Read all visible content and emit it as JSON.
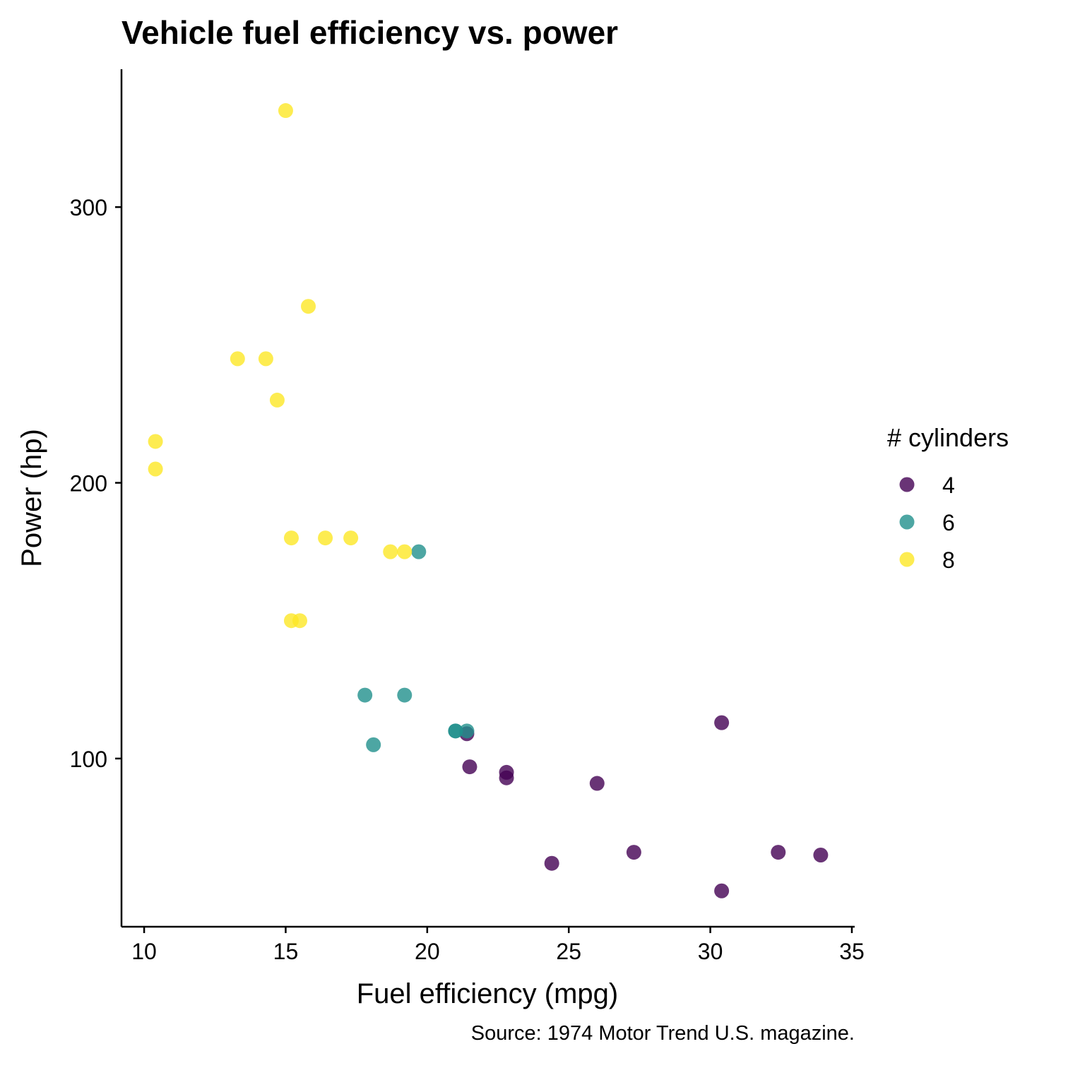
{
  "chart_data": {
    "type": "scatter",
    "title": "Vehicle fuel efficiency vs. power",
    "xlabel": "Fuel efficiency (mpg)",
    "ylabel": "Power (hp)",
    "caption": "Source: 1974 Motor Trend U.S. magazine.",
    "xlim": [
      9.2,
      35.1
    ],
    "ylim": [
      39,
      350
    ],
    "xticks": [
      10,
      15,
      20,
      25,
      30,
      35
    ],
    "yticks": [
      100,
      200,
      300
    ],
    "grid": false,
    "legend": {
      "title": "# cylinders",
      "position": "right",
      "entries": [
        {
          "label": "4",
          "color": "#440154"
        },
        {
          "label": "6",
          "color": "#21908C"
        },
        {
          "label": "8",
          "color": "#FDE725"
        }
      ]
    },
    "point_opacity": 0.8,
    "series": [
      {
        "name": "4",
        "color": "#440154",
        "points": [
          [
            22.8,
            93
          ],
          [
            24.4,
            62
          ],
          [
            22.8,
            95
          ],
          [
            32.4,
            66
          ],
          [
            30.4,
            52
          ],
          [
            33.9,
            65
          ],
          [
            21.5,
            97
          ],
          [
            27.3,
            66
          ],
          [
            26.0,
            91
          ],
          [
            30.4,
            113
          ],
          [
            21.4,
            109
          ]
        ]
      },
      {
        "name": "6",
        "color": "#21908C",
        "points": [
          [
            21.0,
            110
          ],
          [
            21.0,
            110
          ],
          [
            21.4,
            110
          ],
          [
            18.1,
            105
          ],
          [
            19.2,
            123
          ],
          [
            17.8,
            123
          ],
          [
            19.7,
            175
          ]
        ]
      },
      {
        "name": "8",
        "color": "#FDE725",
        "points": [
          [
            18.7,
            175
          ],
          [
            14.3,
            245
          ],
          [
            16.4,
            180
          ],
          [
            17.3,
            180
          ],
          [
            15.2,
            180
          ],
          [
            10.4,
            205
          ],
          [
            10.4,
            215
          ],
          [
            14.7,
            230
          ],
          [
            15.5,
            150
          ],
          [
            15.2,
            150
          ],
          [
            13.3,
            245
          ],
          [
            19.2,
            175
          ],
          [
            15.8,
            264
          ],
          [
            15.0,
            335
          ]
        ]
      }
    ]
  }
}
